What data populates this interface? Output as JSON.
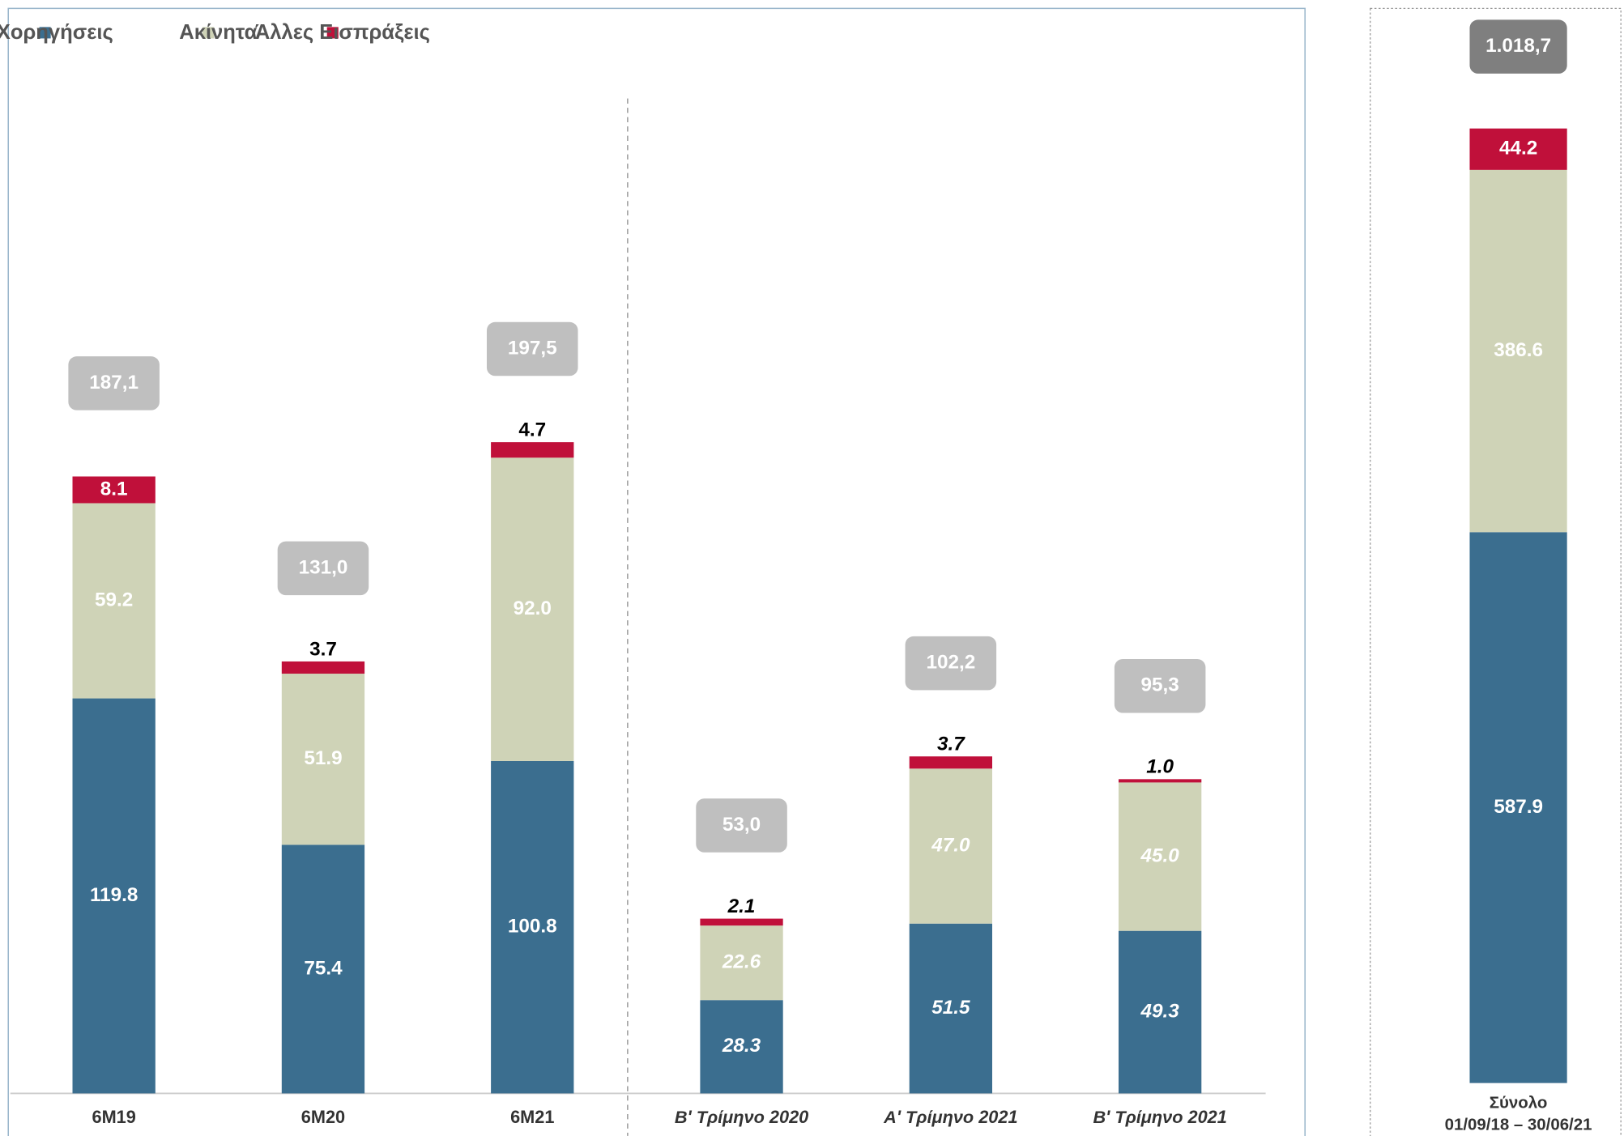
{
  "chart_data": [
    {
      "type": "bar",
      "stacked": true,
      "categories": [
        "6M19",
        "6M20",
        "6M21",
        "Β' Τρίμηνο 2020",
        "Α' Τρίμηνο 2021",
        "Β' Τρίμηνο 2021"
      ],
      "series": [
        {
          "name": "Χορηγήσεις",
          "color": "#3b6e8f",
          "values": [
            119.8,
            75.4,
            100.8,
            28.3,
            51.5,
            49.3
          ],
          "value_labels": [
            "119.8",
            "75.4",
            "100.8",
            "28.3",
            "51.5",
            "49.3"
          ]
        },
        {
          "name": "Ακίνητα",
          "color": "#cfd3b7",
          "values": [
            59.2,
            51.9,
            92.0,
            22.6,
            47.0,
            45.0
          ],
          "value_labels": [
            "59.2",
            "51.9",
            "92.0",
            "22.6",
            "47.0",
            "45.0"
          ]
        },
        {
          "name": "Άλλες Εισπράξεις",
          "color": "#c0103a",
          "values": [
            8.1,
            3.7,
            4.7,
            2.1,
            3.7,
            1.0
          ],
          "value_labels": [
            "8.1",
            "3.7",
            "4.7",
            "2.1",
            "3.7",
            "1.0"
          ]
        }
      ],
      "totals": {
        "values": [
          187.1,
          131.0,
          197.5,
          53.0,
          102.2,
          95.3
        ],
        "value_labels": [
          "187,1",
          "131,0",
          "197,5",
          "53,0",
          "102,2",
          "95,3"
        ],
        "color": "#bfbfbf"
      },
      "legend": "top-left"
    },
    {
      "type": "bar",
      "stacked": true,
      "categories": [
        [
          "Σύνολο",
          "01/09/18 – 30/06/21"
        ]
      ],
      "series": [
        {
          "color": "#3b6e8f",
          "values": [
            587.9
          ],
          "value_labels": [
            "587.9"
          ]
        },
        {
          "color": "#cfd3b7",
          "values": [
            386.6
          ],
          "value_labels": [
            "386.6"
          ]
        },
        {
          "color": "#c0103a",
          "values": [
            44.2
          ],
          "value_labels": [
            "44.2"
          ]
        }
      ],
      "totals": {
        "values": [
          1018.7
        ],
        "value_labels": [
          "1.018,7"
        ],
        "color": "#7f7f7f"
      }
    }
  ]
}
